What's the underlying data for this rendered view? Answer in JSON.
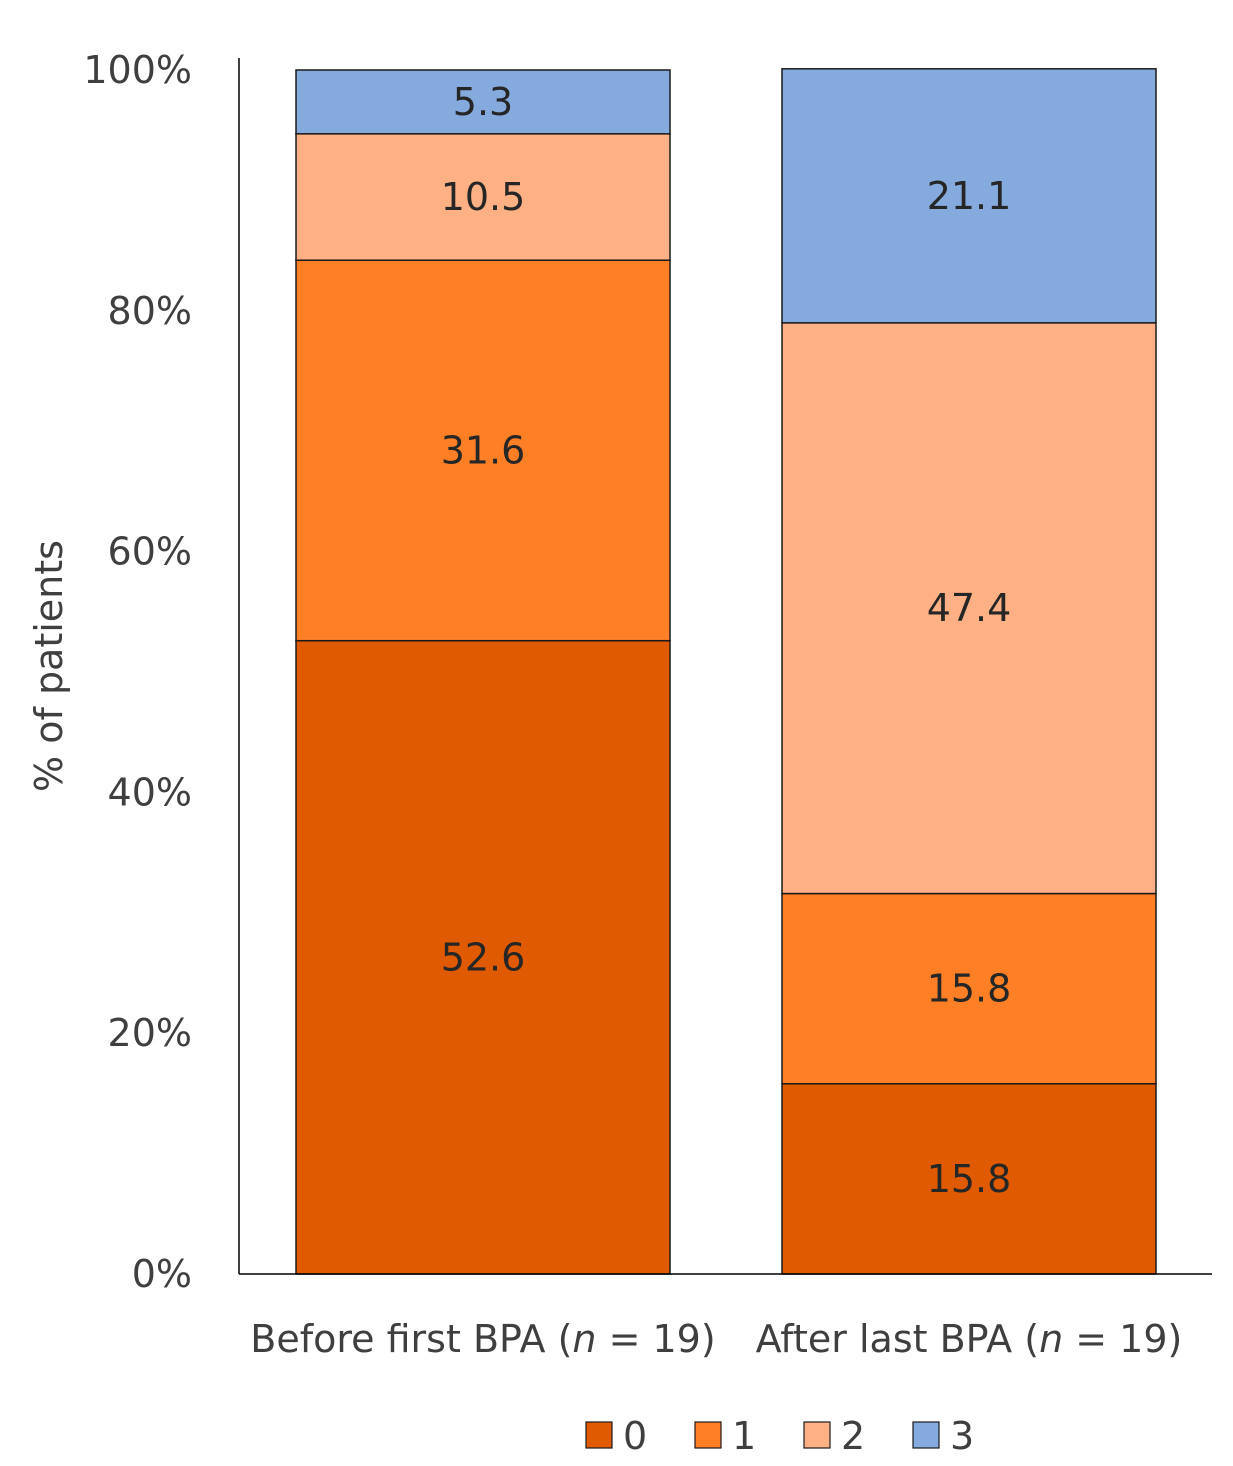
{
  "chart_data": {
    "type": "bar",
    "stacked": true,
    "title": "",
    "xlabel": "",
    "ylabel": "% of patients",
    "ylim": [
      0,
      100
    ],
    "y_ticks": [
      "0%",
      "20%",
      "40%",
      "60%",
      "80%",
      "100%"
    ],
    "categories": [
      {
        "prefix": "Before first BPA (",
        "n_symbol": "n",
        "suffix": " = 19)"
      },
      {
        "prefix": "After last BPA (",
        "n_symbol": "n",
        "suffix": " = 19)"
      }
    ],
    "series": [
      {
        "name": "0",
        "color": "#E05B00",
        "values": [
          52.6,
          15.8
        ],
        "labels": [
          "52.6",
          "15.8"
        ]
      },
      {
        "name": "1",
        "color": "#FF7F27",
        "values": [
          31.6,
          15.8
        ],
        "labels": [
          "31.6",
          "15.8"
        ]
      },
      {
        "name": "2",
        "color": "#FFB185",
        "values": [
          10.5,
          47.4
        ],
        "labels": [
          "10.5",
          "47.4"
        ]
      },
      {
        "name": "3",
        "color": "#85AADD",
        "values": [
          5.3,
          21.1
        ],
        "labels": [
          "5.3",
          "21.1"
        ]
      }
    ],
    "legend": "bottom",
    "grid": false
  }
}
